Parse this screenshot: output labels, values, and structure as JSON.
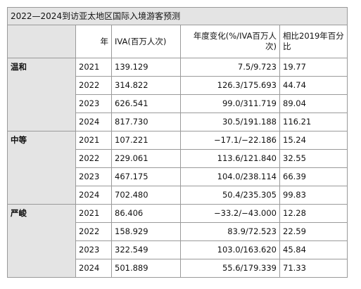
{
  "title": "2022—2024到访亚太地区国际入境游客预测",
  "table": {
    "header": [
      "年",
      "IVA(百万人次)",
      "年度变化(%/IVA百万人次)",
      "相比2019年百分比"
    ],
    "groups": [
      {
        "name": "温和",
        "rows": [
          [
            "2021",
            "139.129",
            "7.5/9.723",
            "19.77"
          ],
          [
            "2022",
            "314.822",
            "126.3/175.693",
            "44.74"
          ],
          [
            "2023",
            "626.541",
            "99.0/311.719",
            "89.04"
          ],
          [
            "2024",
            "817.730",
            "30.5/191.188",
            "116.21"
          ]
        ]
      },
      {
        "name": "中等",
        "rows": [
          [
            "2021",
            "107.221",
            "−17.1/−22.186",
            "15.24"
          ],
          [
            "2022",
            "229.061",
            "113.6/121.840",
            "32.55"
          ],
          [
            "2023",
            "467.175",
            "104.0/238.114",
            "66.39"
          ],
          [
            "2024",
            "702.480",
            "50.4/235.305",
            "99.83"
          ]
        ]
      },
      {
        "name": "严峻",
        "rows": [
          [
            "2021",
            "86.406",
            "−33.2/−43.000",
            "12.28"
          ],
          [
            "2022",
            "158.929",
            "83.9/72.523",
            "22.59"
          ],
          [
            "2023",
            "322.549",
            "103.0/163.620",
            "45.84"
          ],
          [
            "2024",
            "501.889",
            "55.6/179.339",
            "71.33"
          ]
        ]
      }
    ]
  }
}
